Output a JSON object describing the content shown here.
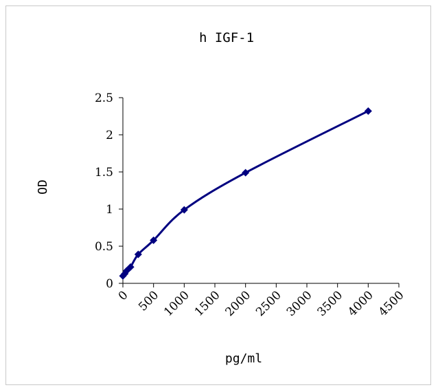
{
  "chart_data": {
    "type": "scatter",
    "title": "h IGF-1",
    "xlabel": "pg/ml",
    "ylabel": "OD",
    "xlim": [
      0,
      4500
    ],
    "ylim": [
      0,
      2.5
    ],
    "x_ticks": [
      0,
      500,
      1000,
      1500,
      2000,
      2500,
      3000,
      3500,
      4000,
      4500
    ],
    "x_tick_labels": [
      "0",
      "500",
      "1000",
      "1500",
      "2000",
      "2500",
      "3000",
      "3500",
      "4000",
      "4500"
    ],
    "y_ticks": [
      0,
      0.5,
      1,
      1.5,
      2,
      2.5
    ],
    "y_tick_labels": [
      "0",
      "0.5",
      "1",
      "1.5",
      "2",
      "2.5"
    ],
    "grid": false,
    "series": [
      {
        "marker": "diamond",
        "color": "#000080",
        "smooth_line": true,
        "x": [
          0,
          31.25,
          62.5,
          125,
          250,
          500,
          1000,
          2000,
          4000
        ],
        "y": [
          0.1,
          0.13,
          0.17,
          0.22,
          0.39,
          0.58,
          0.99,
          1.49,
          2.32
        ]
      }
    ]
  }
}
